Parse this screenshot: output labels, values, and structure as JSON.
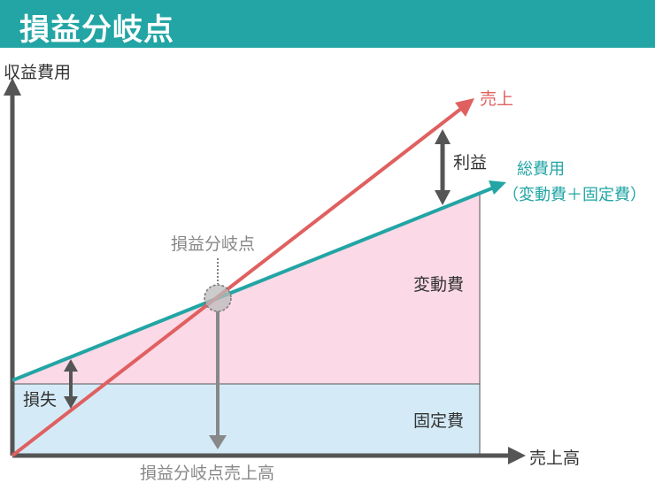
{
  "header": {
    "title": "損益分岐点"
  },
  "axes": {
    "y_label": "収益費用",
    "x_label": "売上高"
  },
  "labels": {
    "sales": "売上",
    "total_cost_line1": "総費用",
    "total_cost_line2": "（変動費＋固定費）",
    "profit": "利益",
    "variable_cost": "変動費",
    "fixed_cost": "固定費",
    "loss": "損失",
    "break_even_point": "損益分岐点",
    "break_even_sales": "損益分岐点売上高"
  },
  "colors": {
    "title_bg": "#22a5a4",
    "sales_line": "#e06060",
    "total_cost_line": "#22a5a4",
    "variable_cost_fill": "#fbd9e6",
    "fixed_cost_fill": "#d4ebf7",
    "axis": "#555555",
    "gray_text": "#888888"
  }
}
